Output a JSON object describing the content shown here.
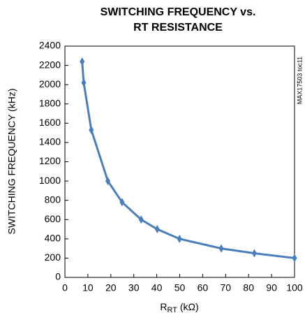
{
  "chart_data": {
    "type": "line",
    "title": [
      "SWITCHING FREQUENCY vs.",
      "RT RESISTANCE"
    ],
    "y_label": "SWITCHING FREQUENCY (kHz)",
    "x_label": {
      "main": "R",
      "sub": "RT",
      "rest": " (kΩ)"
    },
    "side_note": "MAX17503 toc11",
    "x": [
      7.5,
      8.2,
      11.5,
      18.7,
      24.9,
      33.2,
      40.2,
      49.9,
      68.1,
      82.5,
      100
    ],
    "series": [
      {
        "color": "#4a7ebb",
        "values": [
          2240,
          2020,
          1530,
          1000,
          780,
          600,
          500,
          400,
          300,
          250,
          200
        ]
      }
    ],
    "xlim": [
      0,
      100
    ],
    "xticks": [
      0,
      10,
      20,
      30,
      40,
      50,
      60,
      70,
      80,
      90,
      100
    ],
    "ylim": [
      0,
      2400
    ],
    "yticks": [
      0,
      200,
      400,
      600,
      800,
      1000,
      1200,
      1400,
      1600,
      1800,
      2000,
      2200,
      2400
    ],
    "grid": false
  }
}
